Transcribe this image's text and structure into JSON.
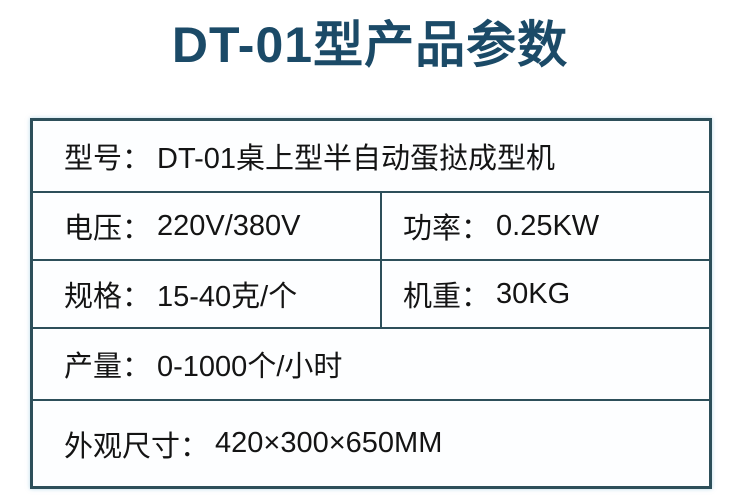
{
  "page": {
    "title": "DT-01型产品参数"
  },
  "colors": {
    "title_text": "#1b4a67",
    "table_border": "#2d4f5a",
    "cell_text": "#141414",
    "background": "#ffffff"
  },
  "table": {
    "rows": [
      {
        "layout": "full",
        "cells": [
          {
            "label": "型号：",
            "value": "DT-01桌上型半自动蛋挞成型机"
          }
        ]
      },
      {
        "layout": "split",
        "cells": [
          {
            "label": "电压：",
            "value": "220V/380V"
          },
          {
            "label": "功率：",
            "value": "0.25KW"
          }
        ]
      },
      {
        "layout": "split",
        "cells": [
          {
            "label": "规格：",
            "value": "15-40克/个"
          },
          {
            "label": "机重：",
            "value": "30KG"
          }
        ]
      },
      {
        "layout": "full",
        "cells": [
          {
            "label": "产量：",
            "value": "0-1000个/小时"
          }
        ]
      },
      {
        "layout": "full",
        "cells": [
          {
            "label": "外观尺寸：",
            "value": "420×300×650MM"
          }
        ]
      }
    ]
  }
}
